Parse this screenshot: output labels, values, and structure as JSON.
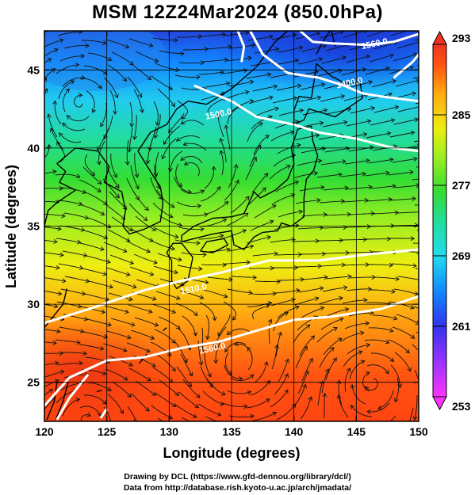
{
  "title": "MSM 12Z24Mar2024 (850.0hPa)",
  "credits": {
    "line1": "Drawing by DCL (https://www.gfd-dennou.org/library/dcl/)",
    "line2": "Data from http://database.rish.kyoto-u.ac.jp/arch/jmadata/"
  },
  "map": {
    "xlabel": "Longitude (degrees)",
    "ylabel": "Latitude  (degrees)",
    "lon_range": [
      120,
      150
    ],
    "lat_range": [
      22.5,
      47.5
    ],
    "lon_ticks": [
      "120",
      "125",
      "130",
      "135",
      "140",
      "145",
      "150"
    ],
    "lat_ticks": [
      "25",
      "30",
      "35",
      "40",
      "45"
    ],
    "field": "temperature (K) with streamlines",
    "contour_labels": [
      {
        "text": "1560.0",
        "lon": 146.5,
        "lat": 46.5
      },
      {
        "text": "1400.0",
        "lon": 144.5,
        "lat": 44.0
      },
      {
        "text": "1500.0",
        "lon": 134.0,
        "lat": 42.0
      },
      {
        "text": "1510.0",
        "lon": 132.0,
        "lat": 30.8
      },
      {
        "text": "1560.0",
        "lon": 133.5,
        "lat": 27.0
      }
    ]
  },
  "colorbar": {
    "labels": [
      "293",
      "285",
      "277",
      "269",
      "261",
      "253"
    ],
    "min": 253,
    "max": 293,
    "colors": [
      "#ff33ff",
      "#9933ff",
      "#3333ee",
      "#1188ff",
      "#22ddee",
      "#22dd99",
      "#33dd33",
      "#99ee22",
      "#eeee11",
      "#ffaa11",
      "#ff5511",
      "#ee3322"
    ]
  }
}
